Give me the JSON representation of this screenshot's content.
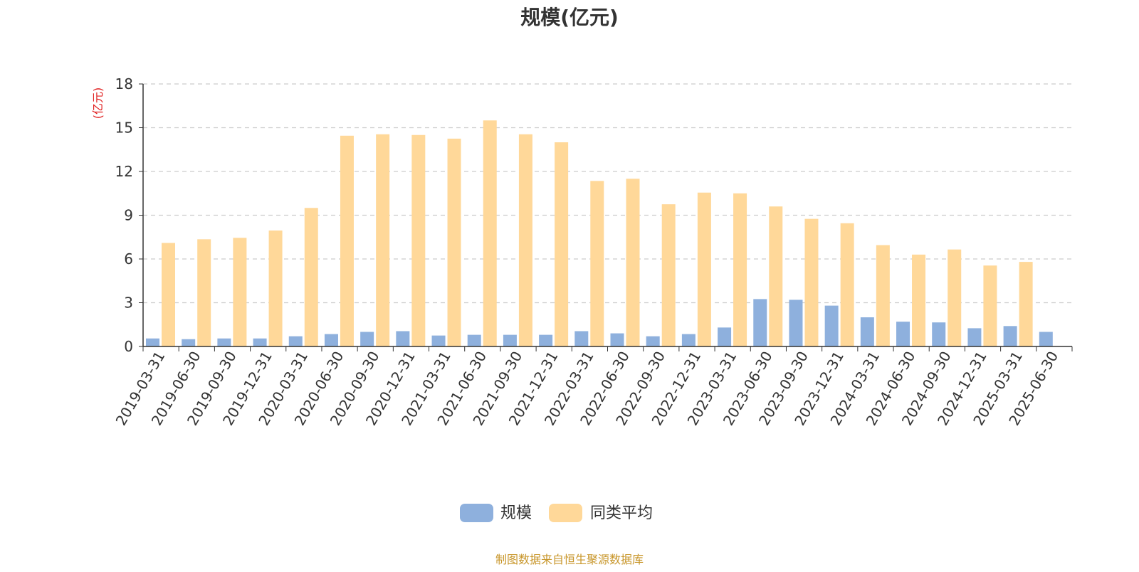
{
  "chart_data": {
    "type": "bar",
    "title": "规模(亿元)",
    "ylabel": "(亿元)",
    "ylim": [
      0,
      18
    ],
    "yticks": [
      0,
      3,
      6,
      9,
      12,
      15,
      18
    ],
    "grid": true,
    "legend_position": "bottom",
    "categories": [
      "2019-03-31",
      "2019-06-30",
      "2019-09-30",
      "2019-12-31",
      "2020-03-31",
      "2020-06-30",
      "2020-09-30",
      "2020-12-31",
      "2021-03-31",
      "2021-06-30",
      "2021-09-30",
      "2021-12-31",
      "2022-03-31",
      "2022-06-30",
      "2022-09-30",
      "2022-12-31",
      "2023-03-31",
      "2023-06-30",
      "2023-09-30",
      "2023-12-31",
      "2024-03-31",
      "2024-06-30",
      "2024-09-30",
      "2024-12-31",
      "2025-03-31",
      "2025-06-30"
    ],
    "series": [
      {
        "name": "规模",
        "color": "#8eb0dd",
        "values": [
          0.55,
          0.5,
          0.55,
          0.55,
          0.7,
          0.85,
          1.0,
          1.05,
          0.75,
          0.8,
          0.8,
          0.8,
          1.05,
          0.9,
          0.7,
          0.85,
          1.3,
          3.25,
          3.2,
          2.8,
          2.0,
          1.7,
          1.65,
          1.25,
          1.4,
          1.0
        ]
      },
      {
        "name": "同类平均",
        "color": "#ffd899",
        "values": [
          7.1,
          7.35,
          7.45,
          7.95,
          9.5,
          14.45,
          14.55,
          14.5,
          14.25,
          15.5,
          14.55,
          14.0,
          11.35,
          11.5,
          9.75,
          10.55,
          10.5,
          9.6,
          8.75,
          8.45,
          6.95,
          6.3,
          6.65,
          5.55,
          5.8,
          null
        ]
      }
    ]
  },
  "footer": {
    "source": "制图数据来自恒生聚源数据库"
  },
  "colors": {
    "axis": "#333333",
    "grid": "#cccccc",
    "unit": "#e02020",
    "source": "#c8962a"
  }
}
